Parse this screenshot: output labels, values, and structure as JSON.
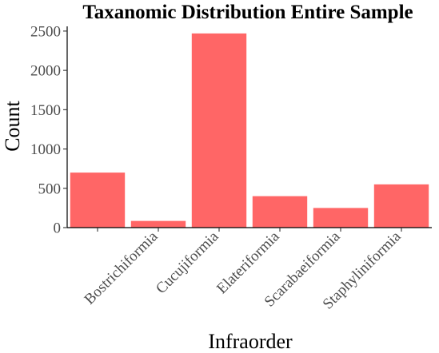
{
  "chart_data": {
    "type": "bar",
    "title": "Taxanomic Distribution Entire Sample",
    "xlabel": "Infraorder",
    "ylabel": "Count",
    "categories": [
      "",
      "Bostrichiformia",
      "Cucujiformia",
      "Elateriformia",
      "Scarabaeiformia",
      "Staphyliniformia"
    ],
    "values": [
      700,
      85,
      2470,
      400,
      250,
      550
    ],
    "ylim": [
      0,
      2560
    ],
    "yticks": [
      0,
      500,
      1000,
      1500,
      2000,
      2500
    ],
    "bar_color": "#ff6666",
    "grid": false,
    "legend": "none"
  }
}
